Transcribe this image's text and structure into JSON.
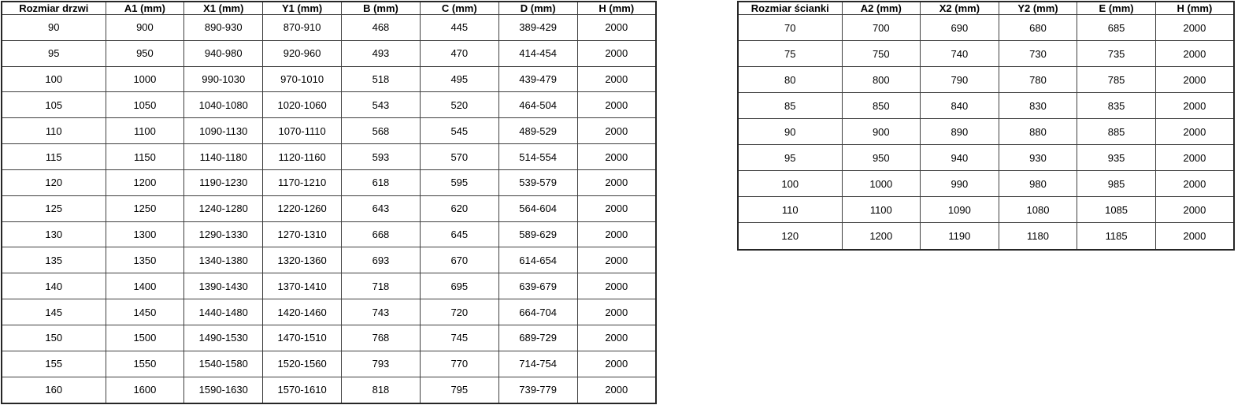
{
  "style": {
    "background_color": "#ffffff",
    "border_color": "#404040",
    "text_color": "#000000"
  },
  "tables": [
    {
      "name": "door-dimensions-table",
      "headers": [
        "Rozmiar drzwi",
        "A1 (mm)",
        "X1 (mm)",
        "Y1 (mm)",
        "B (mm)",
        "C (mm)",
        "D (mm)",
        "H (mm)"
      ],
      "rows": [
        [
          "90",
          "900",
          "890-930",
          "870-910",
          "468",
          "445",
          "389-429",
          "2000"
        ],
        [
          "95",
          "950",
          "940-980",
          "920-960",
          "493",
          "470",
          "414-454",
          "2000"
        ],
        [
          "100",
          "1000",
          "990-1030",
          "970-1010",
          "518",
          "495",
          "439-479",
          "2000"
        ],
        [
          "105",
          "1050",
          "1040-1080",
          "1020-1060",
          "543",
          "520",
          "464-504",
          "2000"
        ],
        [
          "110",
          "1100",
          "1090-1130",
          "1070-1110",
          "568",
          "545",
          "489-529",
          "2000"
        ],
        [
          "115",
          "1150",
          "1140-1180",
          "1120-1160",
          "593",
          "570",
          "514-554",
          "2000"
        ],
        [
          "120",
          "1200",
          "1190-1230",
          "1170-1210",
          "618",
          "595",
          "539-579",
          "2000"
        ],
        [
          "125",
          "1250",
          "1240-1280",
          "1220-1260",
          "643",
          "620",
          "564-604",
          "2000"
        ],
        [
          "130",
          "1300",
          "1290-1330",
          "1270-1310",
          "668",
          "645",
          "589-629",
          "2000"
        ],
        [
          "135",
          "1350",
          "1340-1380",
          "1320-1360",
          "693",
          "670",
          "614-654",
          "2000"
        ],
        [
          "140",
          "1400",
          "1390-1430",
          "1370-1410",
          "718",
          "695",
          "639-679",
          "2000"
        ],
        [
          "145",
          "1450",
          "1440-1480",
          "1420-1460",
          "743",
          "720",
          "664-704",
          "2000"
        ],
        [
          "150",
          "1500",
          "1490-1530",
          "1470-1510",
          "768",
          "745",
          "689-729",
          "2000"
        ],
        [
          "155",
          "1550",
          "1540-1580",
          "1520-1560",
          "793",
          "770",
          "714-754",
          "2000"
        ],
        [
          "160",
          "1600",
          "1590-1630",
          "1570-1610",
          "818",
          "795",
          "739-779",
          "2000"
        ]
      ]
    },
    {
      "name": "wall-dimensions-table",
      "headers": [
        "Rozmiar ścianki",
        "A2 (mm)",
        "X2 (mm)",
        "Y2 (mm)",
        "E (mm)",
        "H (mm)"
      ],
      "rows": [
        [
          "70",
          "700",
          "690",
          "680",
          "685",
          "2000"
        ],
        [
          "75",
          "750",
          "740",
          "730",
          "735",
          "2000"
        ],
        [
          "80",
          "800",
          "790",
          "780",
          "785",
          "2000"
        ],
        [
          "85",
          "850",
          "840",
          "830",
          "835",
          "2000"
        ],
        [
          "90",
          "900",
          "890",
          "880",
          "885",
          "2000"
        ],
        [
          "95",
          "950",
          "940",
          "930",
          "935",
          "2000"
        ],
        [
          "100",
          "1000",
          "990",
          "980",
          "985",
          "2000"
        ],
        [
          "110",
          "1100",
          "1090",
          "1080",
          "1085",
          "2000"
        ],
        [
          "120",
          "1200",
          "1190",
          "1180",
          "1185",
          "2000"
        ]
      ]
    }
  ]
}
